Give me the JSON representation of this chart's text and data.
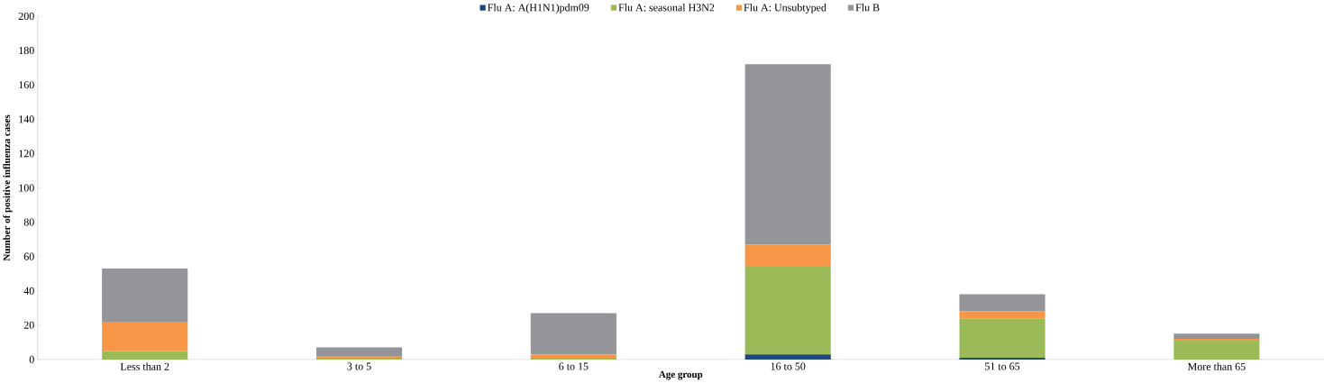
{
  "chart_data": {
    "type": "bar",
    "stacked": true,
    "xlabel": "Age group",
    "ylabel": "Number of positive influenza cases",
    "categories": [
      "Less than 2",
      "3 to 5",
      "6 to 15",
      "16 to 50",
      "51 to 65",
      "More than 65"
    ],
    "series": [
      {
        "name": "Flu A: A(H1N1)pdm09",
        "color": "#1f497d",
        "values": [
          0,
          0,
          0,
          3,
          1,
          0
        ]
      },
      {
        "name": "Flu A: seasonal H3N2",
        "color": "#9bbb59",
        "values": [
          5,
          1,
          1,
          51,
          23,
          11
        ]
      },
      {
        "name": "Flu A: Unsubtyped",
        "color": "#f79646",
        "values": [
          17,
          1,
          2,
          13,
          4,
          1
        ]
      },
      {
        "name": "Flu B",
        "color": "#939598",
        "values": [
          31,
          5,
          24,
          105,
          10,
          3
        ]
      }
    ],
    "ylim": [
      0,
      200
    ],
    "yticks": [
      0,
      20,
      40,
      60,
      80,
      100,
      120,
      140,
      160,
      180,
      200
    ],
    "legend": "top",
    "grid": false
  }
}
